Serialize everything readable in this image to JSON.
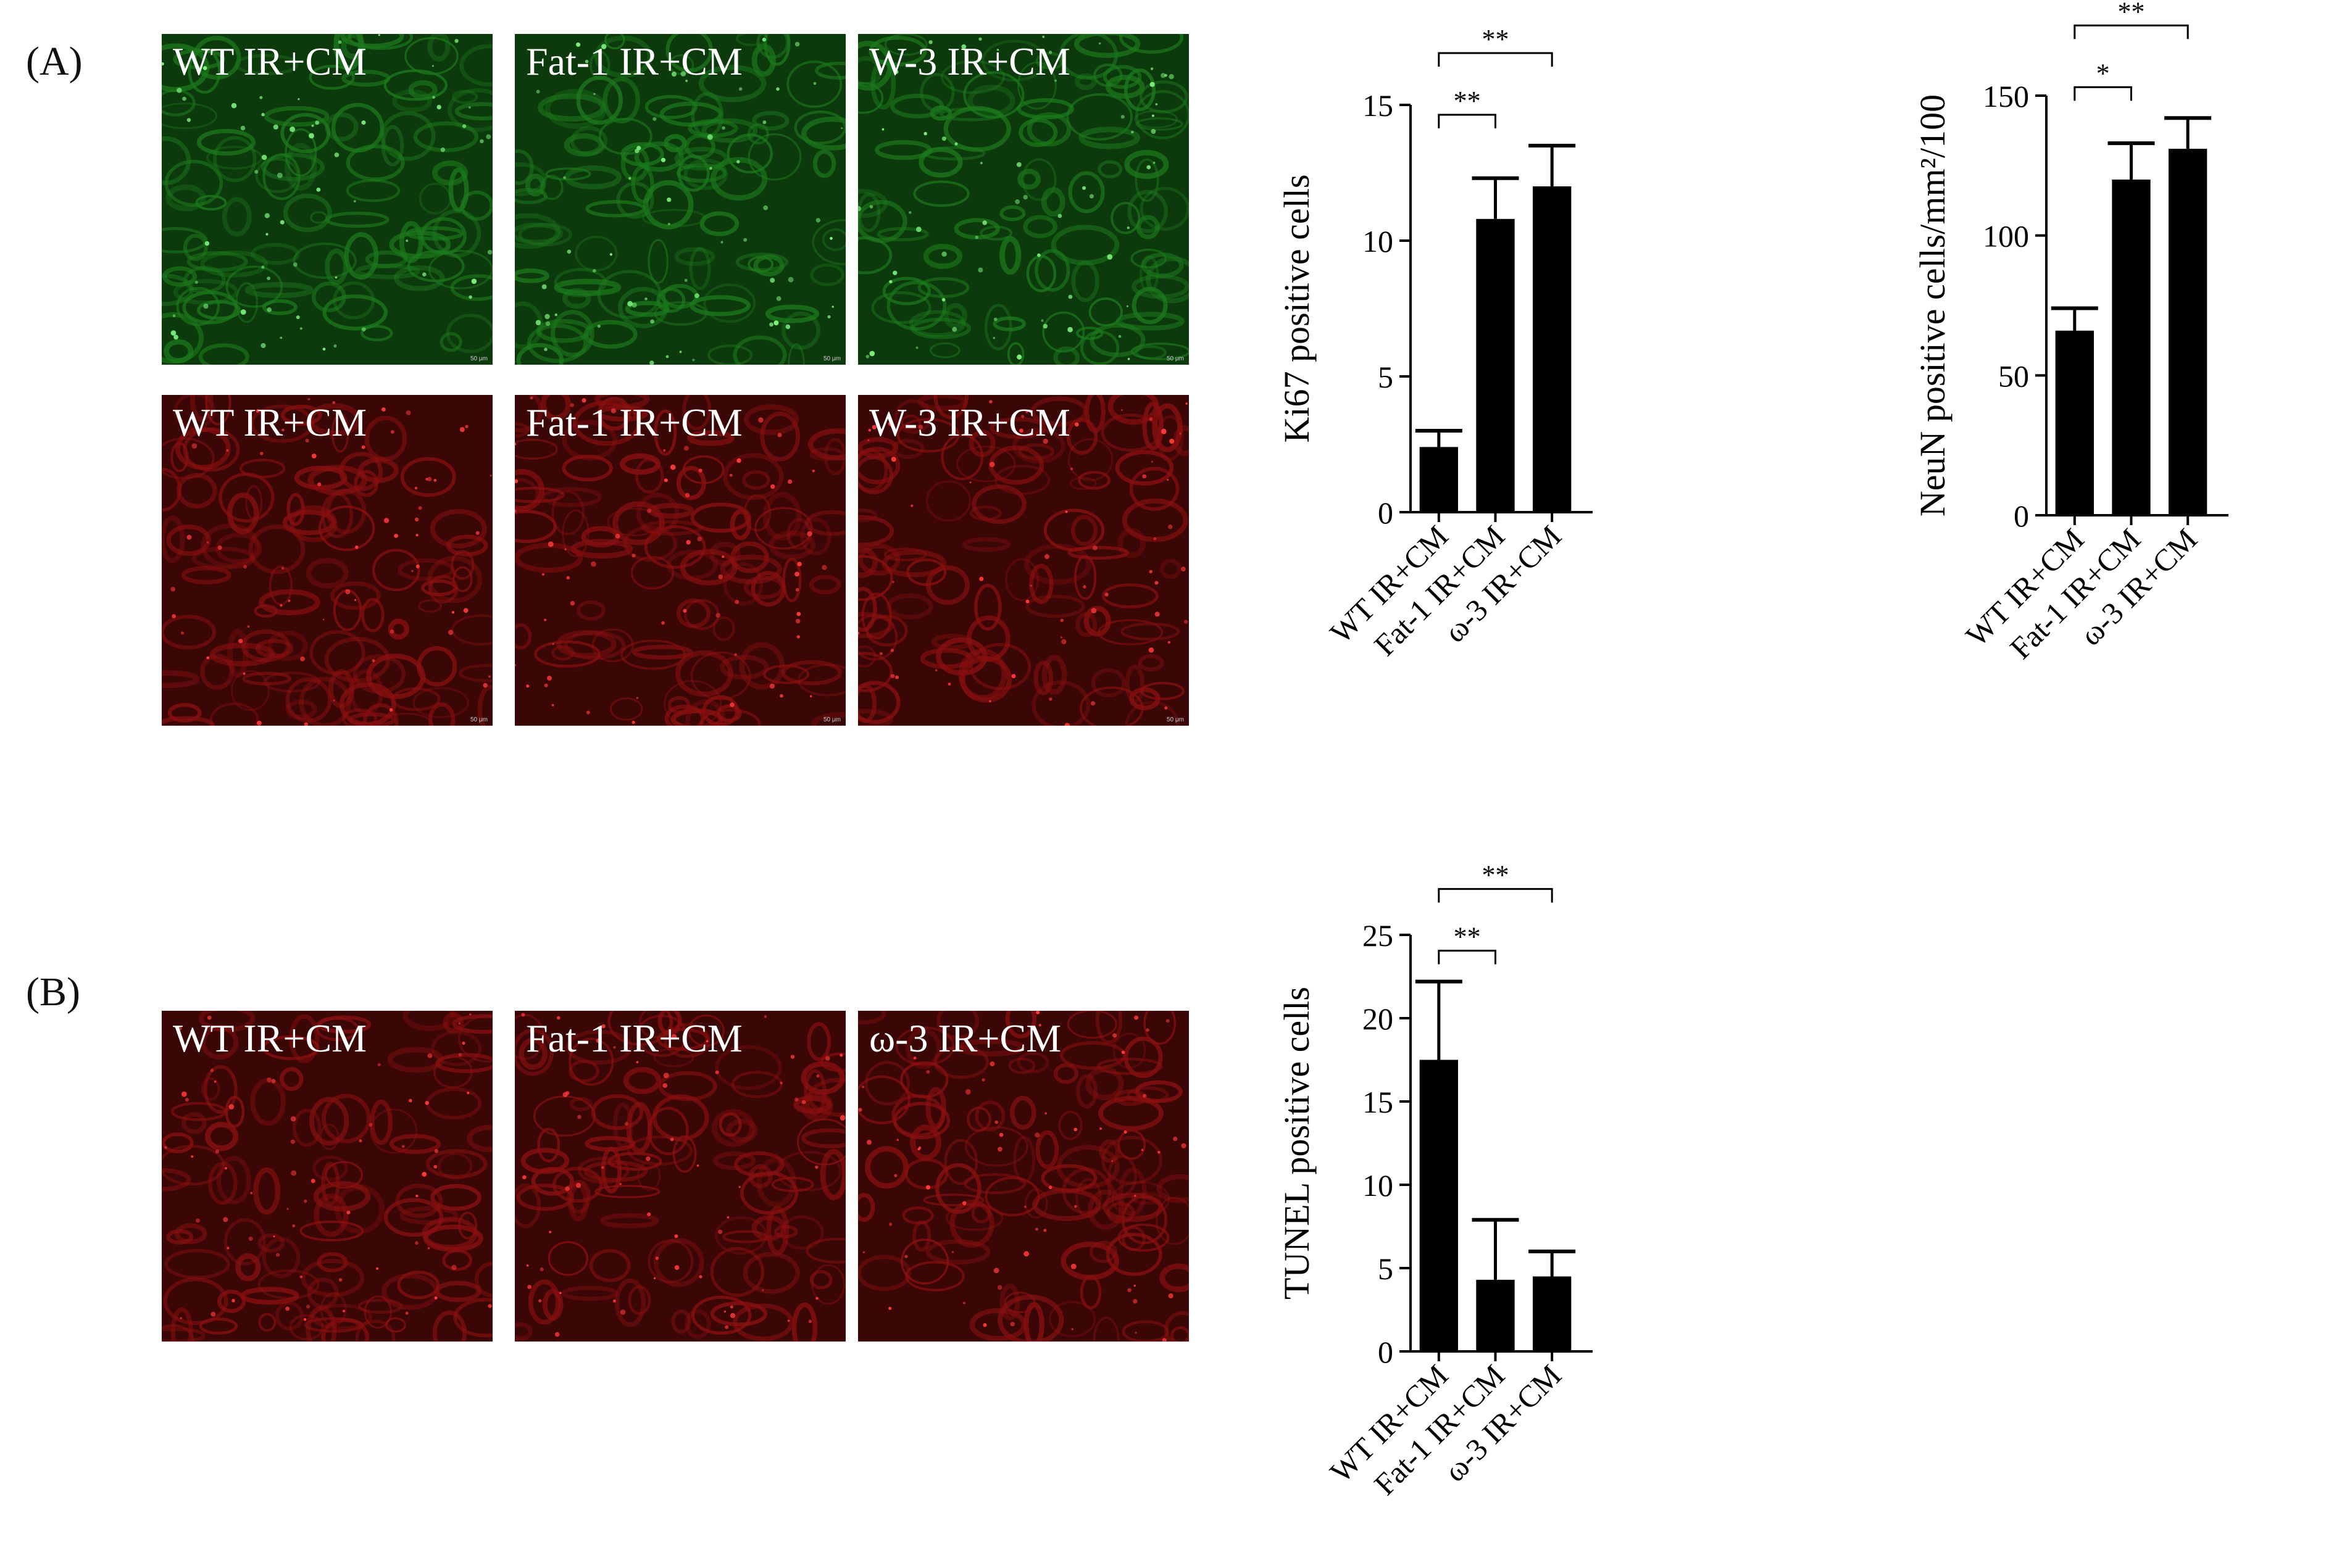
{
  "panels": [
    {
      "letter": "(A)"
    },
    {
      "letter": "(B)"
    }
  ],
  "micrographs": {
    "A_green": [
      "WT IR+CM",
      "Fat-1 IR+CM",
      "W-3 IR+CM"
    ],
    "A_red": [
      "WT IR+CM",
      "Fat-1 IR+CM",
      "W-3 IR+CM"
    ],
    "B_red": [
      "WT IR+CM",
      "Fat-1 IR+CM",
      "ω-3 IR+CM"
    ],
    "scale_bar_label": "50 μm"
  },
  "colors": {
    "green_stain": "#1c7a1c",
    "red_stain": "#8a1010",
    "bar_fill": "#000000"
  },
  "chart_data": [
    {
      "type": "bar",
      "categories": [
        "WT IR+CM",
        "Fat-1 IR+CM",
        "ω-3 IR+CM"
      ],
      "values": [
        2.4,
        10.8,
        12.0
      ],
      "errors": [
        0.6,
        1.5,
        1.5
      ],
      "ylabel": "Ki67 positive cells",
      "ylim": [
        0,
        15
      ],
      "yticks": [
        "0",
        "5",
        "10",
        "15"
      ],
      "significance": [
        {
          "from": 0,
          "to": 1,
          "label": "**"
        },
        {
          "from": 0,
          "to": 2,
          "label": "**"
        }
      ]
    },
    {
      "type": "bar",
      "categories": [
        "WT IR+CM",
        "Fat-1 IR+CM",
        "ω-3 IR+CM"
      ],
      "values": [
        66,
        120,
        131
      ],
      "errors": [
        8,
        13,
        11
      ],
      "ylabel": "NeuN positive cells/mm²/100",
      "ylim": [
        0,
        150
      ],
      "yticks": [
        "0",
        "50",
        "100",
        "150"
      ],
      "significance": [
        {
          "from": 0,
          "to": 1,
          "label": "*"
        },
        {
          "from": 0,
          "to": 2,
          "label": "**"
        }
      ]
    },
    {
      "type": "bar",
      "categories": [
        "WT IR+CM",
        "Fat-1 IR+CM",
        "ω-3 IR+CM"
      ],
      "values": [
        17.5,
        4.3,
        4.5
      ],
      "errors": [
        4.7,
        3.6,
        1.5
      ],
      "ylabel": "TUNEL positive cells",
      "ylim": [
        0,
        25
      ],
      "yticks": [
        "0",
        "5",
        "10",
        "15",
        "20",
        "25"
      ],
      "significance": [
        {
          "from": 0,
          "to": 1,
          "label": "**"
        },
        {
          "from": 0,
          "to": 2,
          "label": "**"
        }
      ]
    }
  ]
}
